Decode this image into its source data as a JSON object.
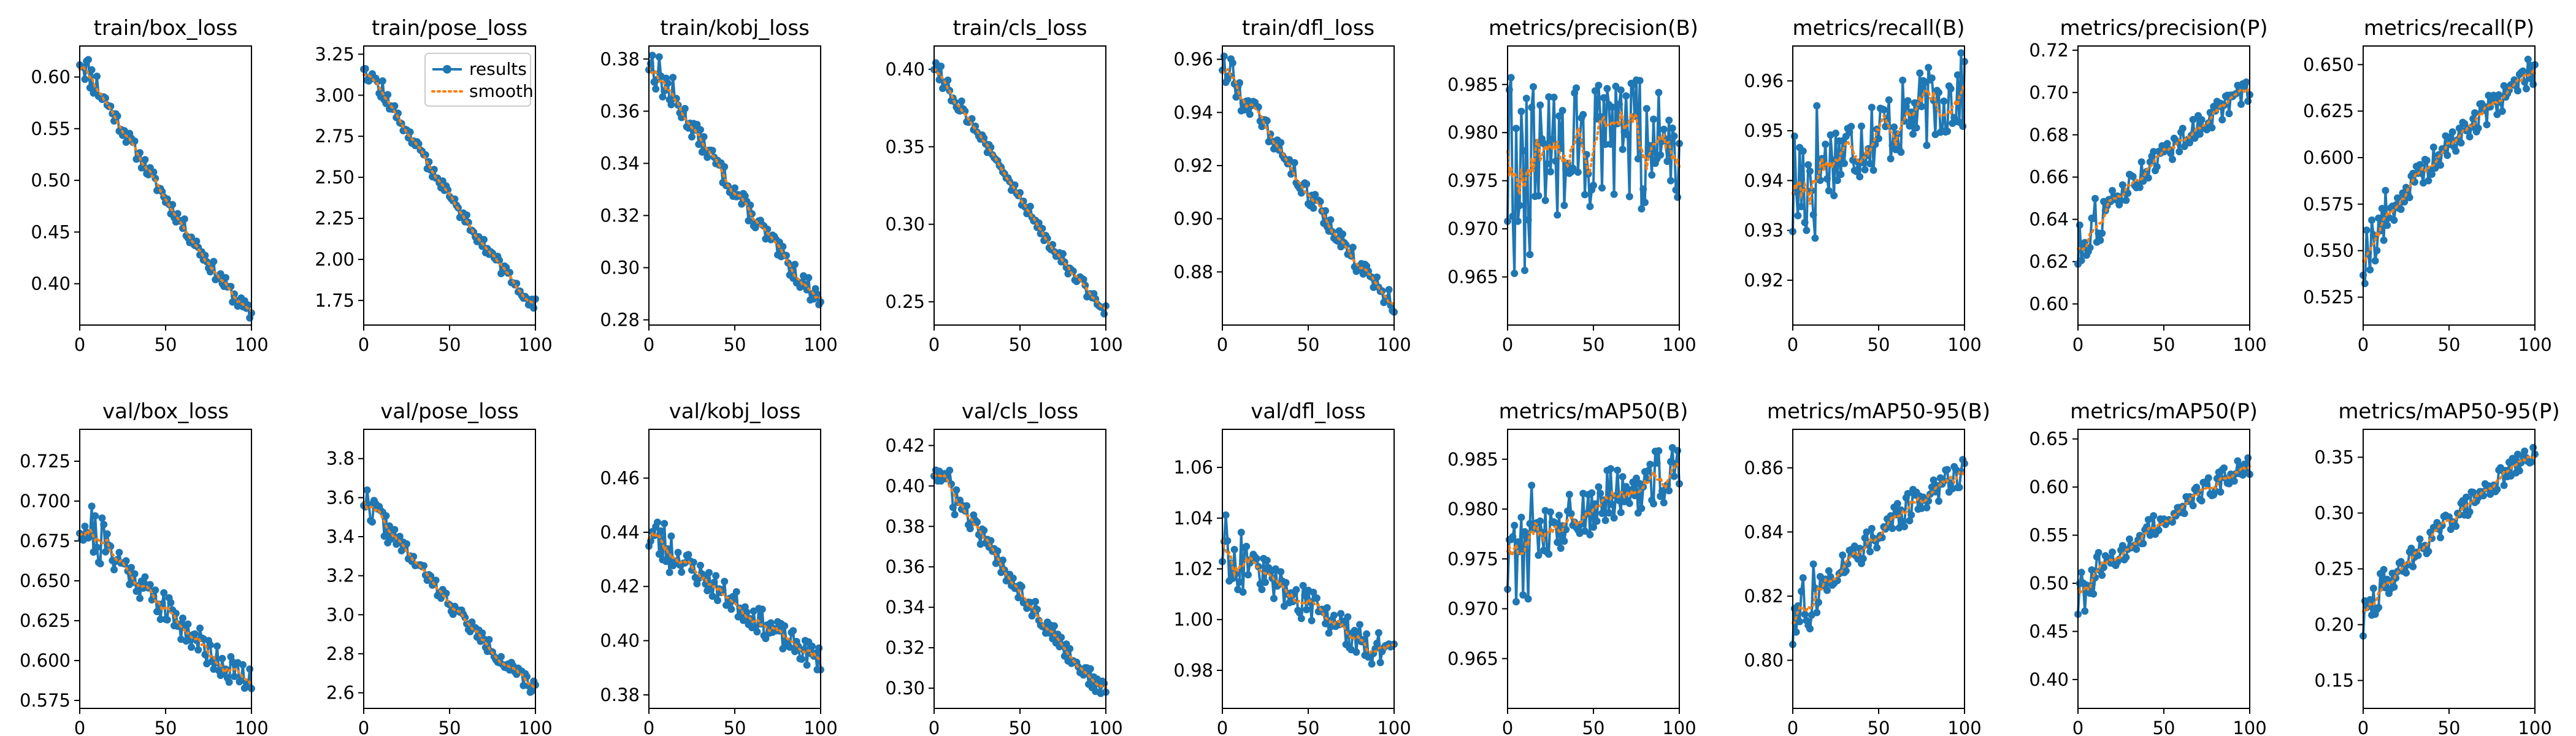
{
  "colors": {
    "results": "#1f77b4",
    "smooth": "#ff7f0e",
    "axes": "#000000"
  },
  "legend": {
    "results_label": "results",
    "smooth_label": "smooth",
    "location": "upper-right",
    "panel": 1
  },
  "chart_data": [
    {
      "type": "line",
      "title": "train/box_loss",
      "xlim": [
        0,
        100
      ],
      "ylim": [
        0.36,
        0.63
      ],
      "xticks": [
        0,
        50,
        100
      ],
      "yticks": [
        0.4,
        0.45,
        0.5,
        0.55,
        0.6
      ],
      "ytick_labels": [
        "0.40",
        "0.45",
        "0.50",
        "0.55",
        "0.60"
      ],
      "series": [
        {
          "name": "results",
          "kind": "decreasing",
          "start": 0.62,
          "end": 0.37,
          "noise": 0.008,
          "seed": 11
        }
      ]
    },
    {
      "type": "line",
      "title": "train/pose_loss",
      "xlim": [
        0,
        100
      ],
      "ylim": [
        1.6,
        3.3
      ],
      "xticks": [
        0,
        50,
        100
      ],
      "yticks": [
        1.75,
        2.0,
        2.25,
        2.5,
        2.75,
        3.0,
        3.25
      ],
      "ytick_labels": [
        "1.75",
        "2.00",
        "2.25",
        "2.50",
        "2.75",
        "3.00",
        "3.25"
      ],
      "series": [
        {
          "name": "results",
          "kind": "decreasing",
          "start": 3.2,
          "end": 1.72,
          "noise": 0.04,
          "seed": 12
        }
      ]
    },
    {
      "type": "line",
      "title": "train/kobj_loss",
      "xlim": [
        0,
        100
      ],
      "ylim": [
        0.278,
        0.385
      ],
      "xticks": [
        0,
        50,
        100
      ],
      "yticks": [
        0.28,
        0.3,
        0.32,
        0.34,
        0.36,
        0.38
      ],
      "ytick_labels": [
        "0.28",
        "0.30",
        "0.32",
        "0.34",
        "0.36",
        "0.38"
      ],
      "series": [
        {
          "name": "results",
          "kind": "decreasing",
          "start": 0.38,
          "end": 0.288,
          "noise": 0.004,
          "seed": 13
        }
      ]
    },
    {
      "type": "line",
      "title": "train/cls_loss",
      "xlim": [
        0,
        100
      ],
      "ylim": [
        0.235,
        0.415
      ],
      "xticks": [
        0,
        50,
        100
      ],
      "yticks": [
        0.25,
        0.3,
        0.35,
        0.4
      ],
      "ytick_labels": [
        "0.25",
        "0.30",
        "0.35",
        "0.40"
      ],
      "series": [
        {
          "name": "results",
          "kind": "decreasing",
          "start": 0.405,
          "end": 0.245,
          "noise": 0.005,
          "seed": 14
        }
      ]
    },
    {
      "type": "line",
      "title": "train/dfl_loss",
      "xlim": [
        0,
        100
      ],
      "ylim": [
        0.86,
        0.965
      ],
      "xticks": [
        0,
        50,
        100
      ],
      "yticks": [
        0.88,
        0.9,
        0.92,
        0.94,
        0.96
      ],
      "ytick_labels": [
        "0.88",
        "0.90",
        "0.92",
        "0.94",
        "0.96"
      ],
      "series": [
        {
          "name": "results",
          "kind": "decreasing",
          "start": 0.96,
          "end": 0.868,
          "noise": 0.004,
          "seed": 15
        }
      ]
    },
    {
      "type": "line",
      "title": "metrics/precision(B)",
      "xlim": [
        0,
        100
      ],
      "ylim": [
        0.96,
        0.989
      ],
      "xticks": [
        0,
        50,
        100
      ],
      "yticks": [
        0.965,
        0.97,
        0.975,
        0.98,
        0.985
      ],
      "ytick_labels": [
        "0.965",
        "0.970",
        "0.975",
        "0.980",
        "0.985"
      ],
      "series": [
        {
          "name": "results",
          "kind": "flat",
          "start": 0.978,
          "end": 0.979,
          "noise": 0.007,
          "seed": 16
        }
      ]
    },
    {
      "type": "line",
      "title": "metrics/recall(B)",
      "xlim": [
        0,
        100
      ],
      "ylim": [
        0.911,
        0.967
      ],
      "xticks": [
        0,
        50,
        100
      ],
      "yticks": [
        0.92,
        0.93,
        0.94,
        0.95,
        0.96
      ],
      "ytick_labels": [
        "0.92",
        "0.93",
        "0.94",
        "0.95",
        "0.96"
      ],
      "series": [
        {
          "name": "results",
          "kind": "increasing",
          "start": 0.938,
          "end": 0.958,
          "noise": 0.008,
          "seed": 17
        }
      ]
    },
    {
      "type": "line",
      "title": "metrics/precision(P)",
      "xlim": [
        0,
        100
      ],
      "ylim": [
        0.59,
        0.722
      ],
      "xticks": [
        0,
        50,
        100
      ],
      "yticks": [
        0.6,
        0.62,
        0.64,
        0.66,
        0.68,
        0.7,
        0.72
      ],
      "ytick_labels": [
        "0.60",
        "0.62",
        "0.64",
        "0.66",
        "0.68",
        "0.70",
        "0.72"
      ],
      "series": [
        {
          "name": "results",
          "kind": "increasing",
          "start": 0.625,
          "end": 0.702,
          "noise": 0.006,
          "seed": 18
        }
      ]
    },
    {
      "type": "line",
      "title": "metrics/recall(P)",
      "xlim": [
        0,
        100
      ],
      "ylim": [
        0.51,
        0.66
      ],
      "xticks": [
        0,
        50,
        100
      ],
      "yticks": [
        0.525,
        0.55,
        0.575,
        0.6,
        0.625,
        0.65
      ],
      "ytick_labels": [
        "0.525",
        "0.550",
        "0.575",
        "0.600",
        "0.625",
        "0.650"
      ],
      "series": [
        {
          "name": "results",
          "kind": "increasing",
          "start": 0.545,
          "end": 0.648,
          "noise": 0.008,
          "seed": 19
        }
      ]
    },
    {
      "type": "line",
      "title": "val/box_loss",
      "xlim": [
        0,
        100
      ],
      "ylim": [
        0.57,
        0.745
      ],
      "xticks": [
        0,
        50,
        100
      ],
      "yticks": [
        0.575,
        0.6,
        0.625,
        0.65,
        0.675,
        0.7,
        0.725
      ],
      "ytick_labels": [
        "0.575",
        "0.600",
        "0.625",
        "0.650",
        "0.675",
        "0.700",
        "0.725"
      ],
      "series": [
        {
          "name": "results",
          "kind": "decreasing",
          "start": 0.69,
          "end": 0.585,
          "noise": 0.01,
          "seed": 21
        }
      ]
    },
    {
      "type": "line",
      "title": "val/pose_loss",
      "xlim": [
        0,
        100
      ],
      "ylim": [
        2.52,
        3.95
      ],
      "xticks": [
        0,
        50,
        100
      ],
      "yticks": [
        2.6,
        2.8,
        3.0,
        3.2,
        3.4,
        3.6,
        3.8
      ],
      "ytick_labels": [
        "2.6",
        "2.8",
        "3.0",
        "3.2",
        "3.4",
        "3.6",
        "3.8"
      ],
      "series": [
        {
          "name": "results",
          "kind": "decreasing",
          "start": 3.6,
          "end": 2.62,
          "noise": 0.04,
          "seed": 22
        }
      ]
    },
    {
      "type": "line",
      "title": "val/kobj_loss",
      "xlim": [
        0,
        100
      ],
      "ylim": [
        0.375,
        0.478
      ],
      "xticks": [
        0,
        50,
        100
      ],
      "yticks": [
        0.38,
        0.4,
        0.42,
        0.44,
        0.46
      ],
      "ytick_labels": [
        "0.38",
        "0.40",
        "0.42",
        "0.44",
        "0.46"
      ],
      "series": [
        {
          "name": "results",
          "kind": "decreasing",
          "start": 0.44,
          "end": 0.393,
          "noise": 0.005,
          "seed": 23
        }
      ]
    },
    {
      "type": "line",
      "title": "val/cls_loss",
      "xlim": [
        0,
        100
      ],
      "ylim": [
        0.29,
        0.428
      ],
      "xticks": [
        0,
        50,
        100
      ],
      "yticks": [
        0.3,
        0.32,
        0.34,
        0.36,
        0.38,
        0.4,
        0.42
      ],
      "ytick_labels": [
        "0.30",
        "0.32",
        "0.34",
        "0.36",
        "0.38",
        "0.40",
        "0.42"
      ],
      "series": [
        {
          "name": "results",
          "kind": "decreasing",
          "start": 0.41,
          "end": 0.298,
          "noise": 0.005,
          "seed": 24
        }
      ]
    },
    {
      "type": "line",
      "title": "val/dfl_loss",
      "xlim": [
        0,
        100
      ],
      "ylim": [
        0.965,
        1.075
      ],
      "xticks": [
        0,
        50,
        100
      ],
      "yticks": [
        0.98,
        1.0,
        1.02,
        1.04,
        1.06
      ],
      "ytick_labels": [
        "0.98",
        "1.00",
        "1.02",
        "1.04",
        "1.06"
      ],
      "series": [
        {
          "name": "results",
          "kind": "decreasing",
          "start": 1.03,
          "end": 0.985,
          "noise": 0.007,
          "seed": 25
        }
      ]
    },
    {
      "type": "line",
      "title": "metrics/mAP50(B)",
      "xlim": [
        0,
        100
      ],
      "ylim": [
        0.96,
        0.988
      ],
      "xticks": [
        0,
        50,
        100
      ],
      "yticks": [
        0.965,
        0.97,
        0.975,
        0.98,
        0.985
      ],
      "ytick_labels": [
        "0.965",
        "0.970",
        "0.975",
        "0.980",
        "0.985"
      ],
      "series": [
        {
          "name": "results",
          "kind": "increasing",
          "start": 0.975,
          "end": 0.984,
          "noise": 0.003,
          "seed": 26
        }
      ]
    },
    {
      "type": "line",
      "title": "metrics/mAP50-95(B)",
      "xlim": [
        0,
        100
      ],
      "ylim": [
        0.785,
        0.872
      ],
      "xticks": [
        0,
        50,
        100
      ],
      "yticks": [
        0.8,
        0.82,
        0.84,
        0.86
      ],
      "ytick_labels": [
        "0.80",
        "0.82",
        "0.84",
        "0.86"
      ],
      "series": [
        {
          "name": "results",
          "kind": "increasing",
          "start": 0.81,
          "end": 0.86,
          "noise": 0.005,
          "seed": 27
        }
      ]
    },
    {
      "type": "line",
      "title": "metrics/mAP50(P)",
      "xlim": [
        0,
        100
      ],
      "ylim": [
        0.37,
        0.66
      ],
      "xticks": [
        0,
        50,
        100
      ],
      "yticks": [
        0.4,
        0.45,
        0.5,
        0.55,
        0.6,
        0.65
      ],
      "ytick_labels": [
        "0.40",
        "0.45",
        "0.50",
        "0.55",
        "0.60",
        "0.65"
      ],
      "series": [
        {
          "name": "results",
          "kind": "increasing",
          "start": 0.48,
          "end": 0.625,
          "noise": 0.012,
          "seed": 28
        }
      ]
    },
    {
      "type": "line",
      "title": "metrics/mAP50-95(P)",
      "xlim": [
        0,
        100
      ],
      "ylim": [
        0.125,
        0.375
      ],
      "xticks": [
        0,
        50,
        100
      ],
      "yticks": [
        0.15,
        0.2,
        0.25,
        0.3,
        0.35
      ],
      "ytick_labels": [
        "0.15",
        "0.20",
        "0.25",
        "0.30",
        "0.35"
      ],
      "series": [
        {
          "name": "results",
          "kind": "increasing",
          "start": 0.2,
          "end": 0.355,
          "noise": 0.01,
          "seed": 29
        }
      ]
    }
  ]
}
